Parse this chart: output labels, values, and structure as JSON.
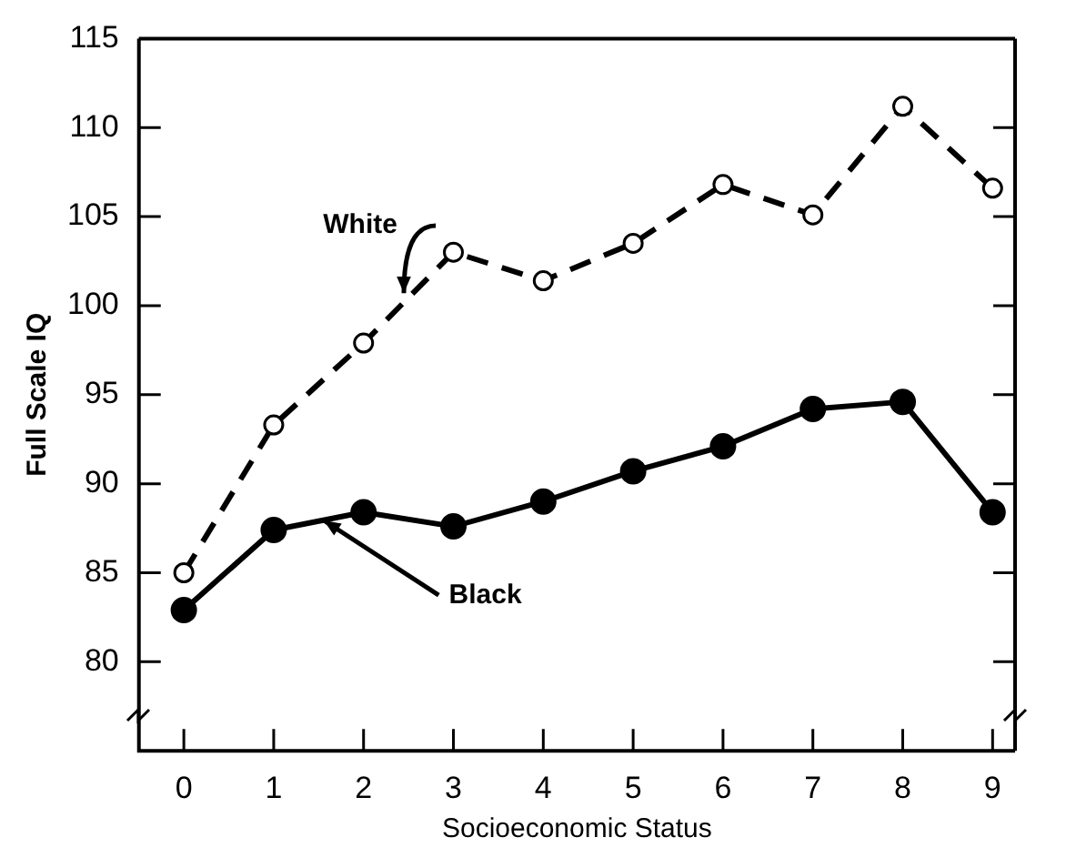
{
  "chart_data": {
    "type": "line",
    "xlabel": "Socioeconomic Status",
    "ylabel": "Full Scale IQ",
    "x": [
      0,
      1,
      2,
      3,
      4,
      5,
      6,
      7,
      8,
      9
    ],
    "xlim": [
      -0.5,
      9.25
    ],
    "xticks": [
      0,
      1,
      2,
      3,
      4,
      5,
      6,
      7,
      8,
      9
    ],
    "ylim": [
      75,
      115
    ],
    "yticks": [
      80,
      85,
      90,
      95,
      100,
      105,
      110,
      115
    ],
    "grid": false,
    "legend": false,
    "marker": "circle",
    "series": [
      {
        "name": "White",
        "color": "#000000",
        "line_style": "dashed",
        "values": [
          85.0,
          93.3,
          97.9,
          103.0,
          101.4,
          103.5,
          106.8,
          105.1,
          111.2,
          106.6
        ]
      },
      {
        "name": "Black",
        "color": "#000000",
        "line_style": "solid",
        "values": [
          82.9,
          87.4,
          88.4,
          87.6,
          89.0,
          90.7,
          92.1,
          94.2,
          94.6,
          88.4
        ]
      }
    ]
  }
}
